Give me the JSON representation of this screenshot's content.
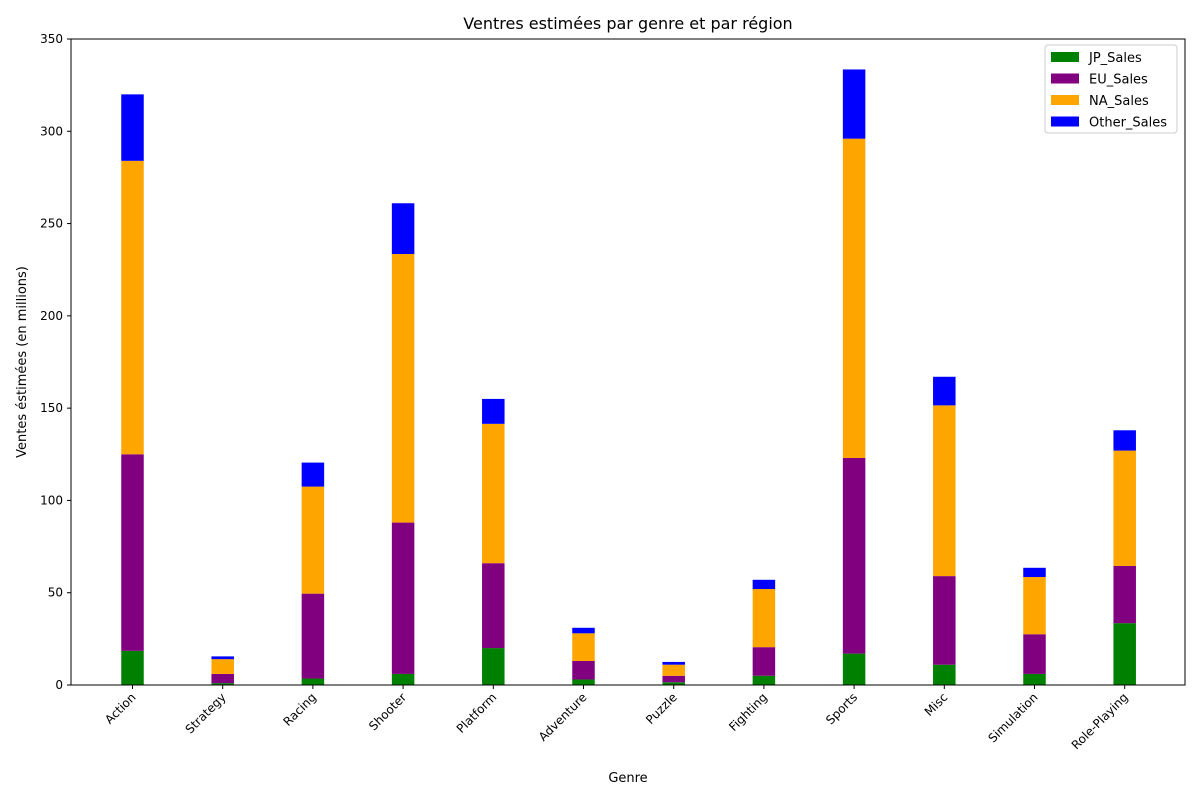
{
  "chart_data": {
    "type": "bar",
    "stacked": true,
    "title": "Ventres estimées par genre et par région",
    "xlabel": "Genre",
    "ylabel": "Ventes éstimées (en millions)",
    "ylim": [
      0,
      350
    ],
    "yticks": [
      0,
      50,
      100,
      150,
      200,
      250,
      300,
      350
    ],
    "grid": false,
    "legend_position": "top-right",
    "categories": [
      "Action",
      "Strategy",
      "Racing",
      "Shooter",
      "Platform",
      "Adventure",
      "Puzzle",
      "Fighting",
      "Sports",
      "Misc",
      "Simulation",
      "Role-Playing"
    ],
    "series": [
      {
        "name": "JP_Sales",
        "color": "#008000",
        "values": [
          18.5,
          1.0,
          3.5,
          6.0,
          20.0,
          3.0,
          1.5,
          5.0,
          17.0,
          11.0,
          6.0,
          33.5
        ]
      },
      {
        "name": "EU_Sales",
        "color": "#800080",
        "values": [
          106.5,
          5.0,
          46.0,
          82.0,
          46.0,
          10.0,
          3.5,
          15.5,
          106.0,
          48.0,
          21.5,
          31.0
        ]
      },
      {
        "name": "NA_Sales",
        "color": "#FFA500",
        "values": [
          159.0,
          8.0,
          58.0,
          145.5,
          75.5,
          15.0,
          6.0,
          31.5,
          173.0,
          92.5,
          31.0,
          62.5
        ]
      },
      {
        "name": "Other_Sales",
        "color": "#0000FF",
        "values": [
          36.0,
          1.5,
          13.0,
          27.5,
          13.5,
          3.0,
          1.5,
          5.0,
          37.5,
          15.5,
          5.0,
          11.0
        ]
      }
    ]
  }
}
